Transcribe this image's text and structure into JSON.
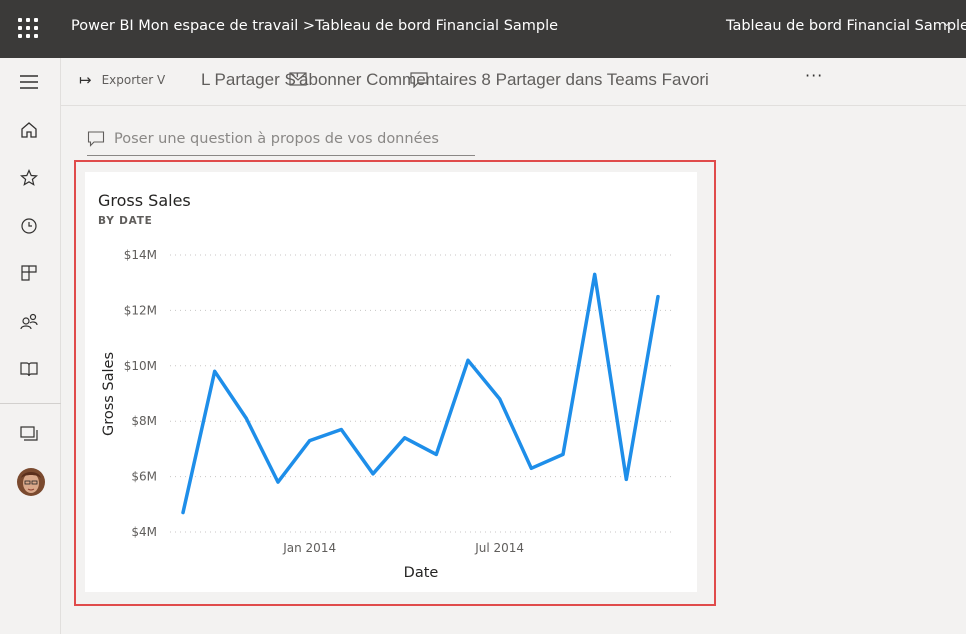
{
  "topbar": {
    "breadcrumb": "Power BI Mon espace de travail >Tableau de bord Financial Sample",
    "dashboard_title": "Tableau de bord Financial Sample",
    "chevron": "˅"
  },
  "toolbar": {
    "export_label": "Exporter V",
    "overlap_text": "L Partager S'abonner Commentaires 8 Partager dans Teams Favori",
    "more": "···"
  },
  "qa": {
    "placeholder": "Poser une question à propos de vos données"
  },
  "sidebar": {
    "items": [
      "menu-icon",
      "home-icon",
      "star-icon",
      "recent-icon",
      "apps-icon",
      "shared-icon",
      "learn-icon",
      "workspaces-icon",
      "avatar"
    ]
  },
  "tile": {
    "title": "Gross Sales",
    "subtitle": "BY DATE"
  },
  "chart_data": {
    "type": "line",
    "title": "Gross Sales",
    "subtitle": "BY DATE",
    "xlabel": "Date",
    "ylabel": "Gross Sales",
    "y_ticks": [
      "$4M",
      "$6M",
      "$8M",
      "$10M",
      "$12M",
      "$14M"
    ],
    "y_tick_values": [
      4,
      6,
      8,
      10,
      12,
      14
    ],
    "ylim": [
      4,
      14
    ],
    "x_ticks": [
      "Jan 2014",
      "Jul 2014"
    ],
    "x": [
      "2013-09",
      "2013-10",
      "2013-11",
      "2013-12",
      "2014-01",
      "2014-02",
      "2014-03",
      "2014-04",
      "2014-05",
      "2014-06",
      "2014-07",
      "2014-08",
      "2014-09",
      "2014-10",
      "2014-11",
      "2014-12"
    ],
    "series": [
      {
        "values": [
          4.7,
          9.8,
          8.1,
          5.8,
          7.3,
          7.7,
          6.1,
          7.4,
          6.8,
          10.2,
          8.8,
          6.3,
          6.8,
          13.3,
          5.9,
          12.5
        ]
      }
    ],
    "grid": true,
    "line_color": "#1e8ee9"
  }
}
